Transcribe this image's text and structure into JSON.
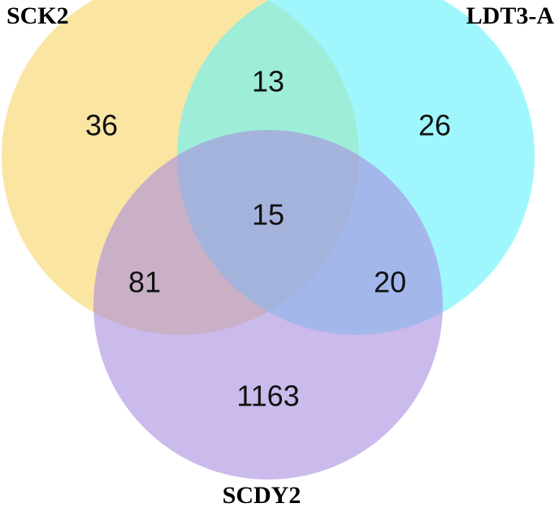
{
  "chart_data": {
    "type": "venn",
    "sets": [
      {
        "name": "SCK2",
        "color": "#f7d466"
      },
      {
        "name": "LDT3-A",
        "color": "#5ff2fb"
      },
      {
        "name": "SCDY2",
        "color": "#a98ce0"
      }
    ],
    "values": [
      36,
      26,
      1163,
      13,
      81,
      20,
      15
    ]
  }
}
